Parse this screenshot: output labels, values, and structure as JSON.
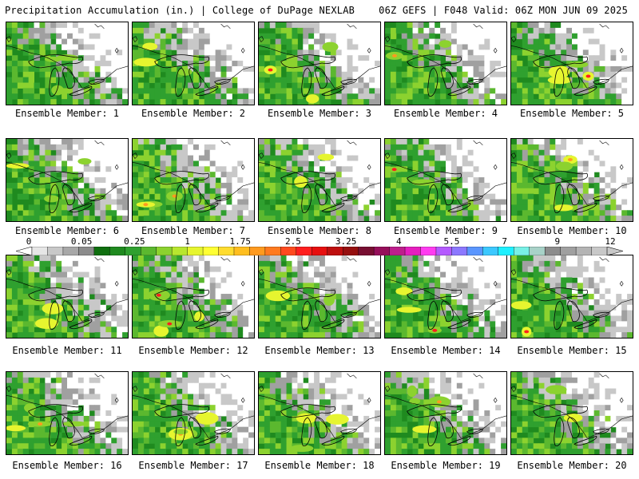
{
  "header": {
    "title_left": "Precipitation Accumulation (in.) | College of DuPage NEXLAB",
    "title_right": "06Z GEFS | F048 Valid: 06Z MON JUN 09 2025"
  },
  "colorbar": {
    "labels": [
      "0",
      "0.05",
      "0.25",
      "1",
      "1.75",
      "2.5",
      "3.25",
      "4",
      "5.5",
      "7",
      "9",
      "12"
    ],
    "colors": [
      "#e6e6e6",
      "#c8c8c8",
      "#a8a8a8",
      "#8c8c8c",
      "#0f6f0f",
      "#1f8a1f",
      "#2fa02f",
      "#5bb82f",
      "#8cd22f",
      "#b8e62f",
      "#e6f52f",
      "#ffff33",
      "#ffdc2f",
      "#ffbe1f",
      "#ff9a1f",
      "#ff7a1f",
      "#ff4a1f",
      "#ff1f1f",
      "#e60f0f",
      "#be0f0f",
      "#960f0f",
      "#780f32",
      "#960f5a",
      "#be1e8c",
      "#e61ebe",
      "#ff3cf0",
      "#b45aff",
      "#8c78ff",
      "#5a96ff",
      "#3cc8ff",
      "#1ef0ff",
      "#78f0e6",
      "#a8d2c8",
      "#8c8c8c",
      "#a0a0a0",
      "#b4b4b4",
      "#c8c8c8"
    ]
  },
  "map_colors": {
    "none": "#ffffff",
    "trace": "#c8c8c8",
    "light": "#a0a0a0",
    "dark_green": "#1f8a1f",
    "green": "#2fa02f",
    "light_green": "#5bb82f",
    "yellow_green": "#8cd22f",
    "yellow": "#e6f52f",
    "gold": "#ffbe1f",
    "orange": "#ff9a1f",
    "red": "#ff1f1f"
  },
  "members": [
    {
      "label": "Ensemble Member: 1"
    },
    {
      "label": "Ensemble Member: 2"
    },
    {
      "label": "Ensemble Member: 3"
    },
    {
      "label": "Ensemble Member: 4"
    },
    {
      "label": "Ensemble Member: 5"
    },
    {
      "label": "Ensemble Member: 6"
    },
    {
      "label": "Ensemble Member: 7"
    },
    {
      "label": "Ensemble Member: 8"
    },
    {
      "label": "Ensemble Member: 9"
    },
    {
      "label": "Ensemble Member: 10"
    },
    {
      "label": "Ensemble Member: 11"
    },
    {
      "label": "Ensemble Member: 12"
    },
    {
      "label": "Ensemble Member: 13"
    },
    {
      "label": "Ensemble Member: 14"
    },
    {
      "label": "Ensemble Member: 15"
    },
    {
      "label": "Ensemble Member: 16"
    },
    {
      "label": "Ensemble Member: 17"
    },
    {
      "label": "Ensemble Member: 18"
    },
    {
      "label": "Ensemble Member: 19"
    },
    {
      "label": "Ensemble Member: 20"
    }
  ]
}
